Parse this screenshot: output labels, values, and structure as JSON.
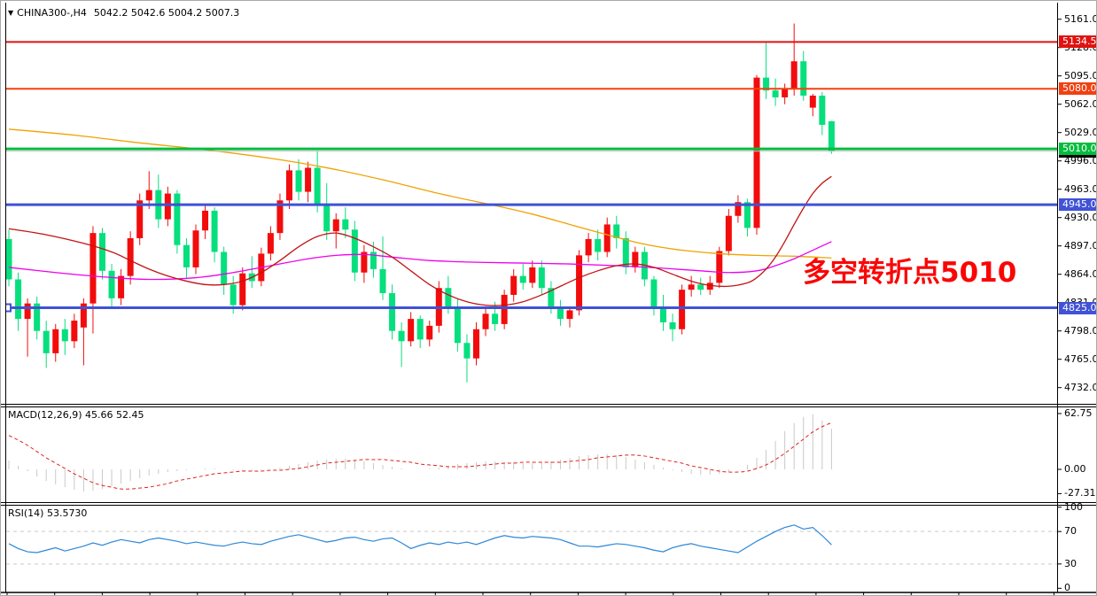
{
  "window": {
    "symbol": "CHINA300-,H4",
    "ohlc": "5042.2 5042.6 5004.2 5007.3"
  },
  "annotation": {
    "text": "多空转折点5010",
    "color": "#fa0606"
  },
  "panels": {
    "macd": {
      "label": "MACD(12,26,9) 45.66 52.45"
    },
    "rsi": {
      "label": "RSI(14) 53.5730"
    }
  },
  "chart_data": {
    "type": "candlestick",
    "title": "CHINA300-,H4",
    "last_bar": {
      "open": 5042.2,
      "high": 5042.6,
      "low": 5004.2,
      "close": 5007.3
    },
    "price_axis": {
      "labels": [
        "5161.0",
        "5128.0",
        "5095.0",
        "5062.0",
        "5029.0",
        "4996.0",
        "4963.0",
        "4930.0",
        "4897.0",
        "4864.0",
        "4831.0",
        "4798.0",
        "4765.0",
        "4732.0"
      ],
      "min": 4732.0,
      "max": 5161.0,
      "step": 33.0
    },
    "axis_badges": [
      {
        "label": "5134.5",
        "price": 5134.5,
        "bg": "#df1310"
      },
      {
        "label": "5080.0",
        "price": 5080.0,
        "bg": "#f04012"
      },
      {
        "label": "5007.3",
        "price": 5007.3,
        "bg": "#000000"
      },
      {
        "label": "5010.0",
        "price": 5010.0,
        "bg": "#00bd3d"
      },
      {
        "label": "4945.0",
        "price": 4945.0,
        "bg": "#4052d5"
      },
      {
        "label": "4825.0",
        "price": 4825.0,
        "bg": "#4052d5"
      }
    ],
    "hlines": [
      {
        "price": 5134.5,
        "color": "#e11414",
        "width": 2,
        "handle": false
      },
      {
        "price": 5080.0,
        "color": "#f3410f",
        "width": 2,
        "handle": false
      },
      {
        "price": 5010.0,
        "color": "#00bd3d",
        "width": 3,
        "handle": false
      },
      {
        "price": 4945.0,
        "color": "#4052d5",
        "width": 3,
        "handle": false
      },
      {
        "price": 4825.0,
        "color": "#4052d5",
        "width": 3,
        "handle": true
      }
    ],
    "last_price_line": {
      "price": 5007.3,
      "color": "#c4c4c4"
    },
    "colors": {
      "candle_up": "#f20c0c",
      "candle_down": "#06df7d",
      "ma_orange": "#f0a202",
      "ma_magenta": "#ee00ee",
      "ma_darkred": "#c21313",
      "macd_bar": "#c9c9c9",
      "macd_signal": "#e02020",
      "rsi_line": "#2b87d8",
      "rsi_level": "#c9c9c9"
    },
    "candles": [
      [
        4905,
        4916,
        4850,
        4858
      ],
      [
        4858,
        4866,
        4798,
        4812
      ],
      [
        4812,
        4836,
        4768,
        4830
      ],
      [
        4830,
        4838,
        4788,
        4798
      ],
      [
        4798,
        4810,
        4755,
        4772
      ],
      [
        4772,
        4806,
        4762,
        4800
      ],
      [
        4800,
        4812,
        4770,
        4786
      ],
      [
        4786,
        4818,
        4778,
        4810
      ],
      [
        4802,
        4836,
        4758,
        4830
      ],
      [
        4830,
        4920,
        4795,
        4912
      ],
      [
        4912,
        4918,
        4858,
        4868
      ],
      [
        4868,
        4876,
        4826,
        4836
      ],
      [
        4836,
        4870,
        4828,
        4862
      ],
      [
        4862,
        4914,
        4852,
        4906
      ],
      [
        4906,
        4958,
        4898,
        4950
      ],
      [
        4950,
        4984,
        4940,
        4962
      ],
      [
        4962,
        4980,
        4918,
        4928
      ],
      [
        4928,
        4966,
        4920,
        4958
      ],
      [
        4958,
        4962,
        4888,
        4898
      ],
      [
        4898,
        4906,
        4860,
        4872
      ],
      [
        4872,
        4922,
        4864,
        4915
      ],
      [
        4915,
        4945,
        4905,
        4938
      ],
      [
        4938,
        4942,
        4878,
        4890
      ],
      [
        4890,
        4896,
        4840,
        4852
      ],
      [
        4852,
        4862,
        4818,
        4828
      ],
      [
        4828,
        4872,
        4822,
        4865
      ],
      [
        4865,
        4885,
        4848,
        4856
      ],
      [
        4856,
        4895,
        4850,
        4888
      ],
      [
        4888,
        4920,
        4880,
        4912
      ],
      [
        4912,
        4958,
        4904,
        4950
      ],
      [
        4950,
        4992,
        4940,
        4985
      ],
      [
        4985,
        4998,
        4950,
        4960
      ],
      [
        4960,
        4995,
        4948,
        4988
      ],
      [
        4988,
        5008,
        4936,
        4946
      ],
      [
        4946,
        4970,
        4904,
        4914
      ],
      [
        4914,
        4935,
        4894,
        4928
      ],
      [
        4928,
        4942,
        4906,
        4916
      ],
      [
        4916,
        4926,
        4856,
        4866
      ],
      [
        4866,
        4898,
        4854,
        4890
      ],
      [
        4890,
        4902,
        4860,
        4870
      ],
      [
        4870,
        4908,
        4834,
        4842
      ],
      [
        4842,
        4852,
        4788,
        4798
      ],
      [
        4798,
        4808,
        4756,
        4786
      ],
      [
        4786,
        4820,
        4780,
        4812
      ],
      [
        4812,
        4816,
        4778,
        4788
      ],
      [
        4788,
        4810,
        4780,
        4804
      ],
      [
        4804,
        4856,
        4796,
        4848
      ],
      [
        4848,
        4862,
        4818,
        4826
      ],
      [
        4826,
        4836,
        4774,
        4784
      ],
      [
        4784,
        4794,
        4738,
        4766
      ],
      [
        4766,
        4808,
        4758,
        4800
      ],
      [
        4800,
        4824,
        4792,
        4818
      ],
      [
        4818,
        4832,
        4798,
        4806
      ],
      [
        4806,
        4846,
        4800,
        4840
      ],
      [
        4840,
        4870,
        4832,
        4862
      ],
      [
        4862,
        4876,
        4846,
        4854
      ],
      [
        4854,
        4880,
        4848,
        4872
      ],
      [
        4872,
        4880,
        4840,
        4848
      ],
      [
        4848,
        4856,
        4818,
        4826
      ],
      [
        4826,
        4834,
        4804,
        4812
      ],
      [
        4812,
        4826,
        4802,
        4822
      ],
      [
        4822,
        4892,
        4816,
        4886
      ],
      [
        4886,
        4912,
        4878,
        4905
      ],
      [
        4905,
        4916,
        4880,
        4890
      ],
      [
        4890,
        4930,
        4884,
        4922
      ],
      [
        4922,
        4932,
        4894,
        4906
      ],
      [
        4906,
        4914,
        4864,
        4872
      ],
      [
        4872,
        4896,
        4866,
        4890
      ],
      [
        4890,
        4896,
        4850,
        4858
      ],
      [
        4858,
        4862,
        4816,
        4826
      ],
      [
        4826,
        4840,
        4798,
        4808
      ],
      [
        4808,
        4818,
        4786,
        4800
      ],
      [
        4800,
        4852,
        4794,
        4846
      ],
      [
        4846,
        4862,
        4838,
        4852
      ],
      [
        4852,
        4860,
        4840,
        4846
      ],
      [
        4846,
        4862,
        4840,
        4854
      ],
      [
        4854,
        4896,
        4848,
        4891
      ],
      [
        4891,
        4940,
        4886,
        4932
      ],
      [
        4932,
        4956,
        4924,
        4948
      ],
      [
        4948,
        4952,
        4908,
        4918
      ],
      [
        4918,
        5096,
        4910,
        5093
      ],
      [
        5093,
        5134,
        5068,
        5078
      ],
      [
        5078,
        5092,
        5060,
        5070
      ],
      [
        5070,
        5086,
        5062,
        5080
      ],
      [
        5080,
        5156,
        5072,
        5112
      ],
      [
        5112,
        5124,
        5066,
        5072
      ],
      [
        5058,
        5074,
        5048,
        5072
      ],
      [
        5072,
        5076,
        5026,
        5038
      ],
      [
        5042.2,
        5042.6,
        5004.2,
        5007.3
      ]
    ],
    "ma": {
      "orange": [
        [
          0,
          5033
        ],
        [
          7,
          5026
        ],
        [
          14,
          5017
        ],
        [
          21,
          5009
        ],
        [
          28,
          4999
        ],
        [
          34,
          4988
        ],
        [
          40,
          4974
        ],
        [
          46,
          4958
        ],
        [
          52,
          4944
        ],
        [
          56,
          4934
        ],
        [
          60,
          4922
        ],
        [
          64,
          4910
        ],
        [
          68,
          4899
        ],
        [
          72,
          4892
        ],
        [
          76,
          4888
        ],
        [
          80,
          4886
        ],
        [
          84,
          4885
        ],
        [
          88,
          4883
        ]
      ],
      "magenta": [
        [
          0,
          4872
        ],
        [
          5,
          4866
        ],
        [
          10,
          4861
        ],
        [
          15,
          4858
        ],
        [
          20,
          4860
        ],
        [
          24,
          4866
        ],
        [
          28,
          4874
        ],
        [
          32,
          4882
        ],
        [
          35,
          4886
        ],
        [
          38,
          4887
        ],
        [
          41,
          4884
        ],
        [
          45,
          4880
        ],
        [
          50,
          4878
        ],
        [
          55,
          4877
        ],
        [
          60,
          4876
        ],
        [
          65,
          4874
        ],
        [
          70,
          4871
        ],
        [
          74,
          4868
        ],
        [
          77,
          4866
        ],
        [
          80,
          4868
        ],
        [
          82,
          4874
        ],
        [
          84,
          4882
        ],
        [
          86,
          4892
        ],
        [
          88,
          4902
        ]
      ],
      "darkred": [
        [
          0,
          4917
        ],
        [
          4,
          4910
        ],
        [
          8,
          4900
        ],
        [
          11,
          4890
        ],
        [
          13,
          4880
        ],
        [
          15,
          4870
        ],
        [
          17,
          4862
        ],
        [
          19,
          4856
        ],
        [
          21,
          4852
        ],
        [
          23,
          4852
        ],
        [
          25,
          4856
        ],
        [
          27,
          4866
        ],
        [
          29,
          4880
        ],
        [
          31,
          4896
        ],
        [
          33,
          4908
        ],
        [
          35,
          4912
        ],
        [
          37,
          4906
        ],
        [
          39,
          4896
        ],
        [
          41,
          4884
        ],
        [
          43,
          4868
        ],
        [
          45,
          4852
        ],
        [
          47,
          4840
        ],
        [
          49,
          4832
        ],
        [
          51,
          4828
        ],
        [
          53,
          4828
        ],
        [
          55,
          4832
        ],
        [
          57,
          4840
        ],
        [
          59,
          4850
        ],
        [
          61,
          4860
        ],
        [
          63,
          4868
        ],
        [
          65,
          4874
        ],
        [
          67,
          4876
        ],
        [
          69,
          4872
        ],
        [
          71,
          4864
        ],
        [
          73,
          4856
        ],
        [
          75,
          4851
        ],
        [
          77,
          4850
        ],
        [
          79,
          4854
        ],
        [
          80,
          4860
        ],
        [
          81,
          4870
        ],
        [
          82,
          4884
        ],
        [
          83,
          4902
        ],
        [
          84,
          4922
        ],
        [
          85,
          4941
        ],
        [
          86,
          4958
        ],
        [
          87,
          4970
        ],
        [
          88,
          4978
        ]
      ]
    },
    "indicators": {
      "macd": {
        "name": "MACD(12,26,9)",
        "main_last": 45.66,
        "signal_last": 52.45,
        "axis_labels": [
          "62.75",
          "0.00",
          "-27.31"
        ],
        "axis_values": [
          62.75,
          0.0,
          -27.31
        ],
        "histogram": [
          10,
          4,
          -2,
          -8,
          -13,
          -17,
          -20,
          -23,
          -25,
          -24,
          -22,
          -19,
          -16,
          -13,
          -10,
          -7,
          -5,
          -3,
          -2,
          -1,
          0,
          1,
          1,
          0,
          -1,
          -2,
          -2,
          -1,
          0,
          2,
          4,
          6,
          8,
          10,
          11,
          12,
          12,
          11,
          9,
          7,
          5,
          3,
          1,
          0,
          0,
          1,
          2,
          4,
          6,
          7,
          8,
          9,
          9,
          8,
          8,
          7,
          7,
          8,
          9,
          11,
          13,
          15,
          16,
          17,
          17,
          16,
          14,
          11,
          8,
          5,
          2,
          -1,
          -3,
          -5,
          -6,
          -6,
          -5,
          -3,
          0,
          5,
          13,
          22,
          32,
          43,
          52,
          59,
          62,
          55,
          45.66
        ],
        "signal": [
          38,
          33,
          27,
          20,
          13,
          7,
          1,
          -5,
          -10,
          -15,
          -18,
          -20,
          -22,
          -22,
          -21,
          -20,
          -18,
          -16,
          -13,
          -11,
          -9,
          -7,
          -5,
          -4,
          -3,
          -2,
          -2,
          -2,
          -1,
          -1,
          0,
          1,
          3,
          5,
          7,
          8,
          9,
          10,
          11,
          11,
          11,
          10,
          9,
          8,
          6,
          5,
          4,
          3,
          3,
          3,
          4,
          5,
          6,
          7,
          7,
          8,
          8,
          8,
          8,
          8,
          9,
          10,
          11,
          13,
          14,
          15,
          16,
          16,
          15,
          13,
          11,
          9,
          7,
          4,
          2,
          0,
          -2,
          -3,
          -3,
          -2,
          1,
          5,
          11,
          18,
          26,
          34,
          42,
          48,
          52.45
        ]
      },
      "rsi": {
        "name": "RSI(14)",
        "last": 53.573,
        "axis_labels": [
          "100",
          "70",
          "30",
          "0"
        ],
        "axis_values": [
          100,
          70,
          30,
          0
        ],
        "levels": [
          70,
          30
        ],
        "values": [
          55,
          49,
          45,
          44,
          47,
          50,
          46,
          49,
          52,
          56,
          53,
          57,
          60,
          58,
          56,
          60,
          62,
          60,
          58,
          55,
          57,
          55,
          53,
          52,
          55,
          57,
          55,
          54,
          58,
          61,
          64,
          66,
          63,
          60,
          57,
          59,
          62,
          63,
          60,
          58,
          61,
          62,
          56,
          49,
          53,
          56,
          54,
          57,
          55,
          57,
          54,
          58,
          62,
          65,
          63,
          62,
          64,
          63,
          62,
          60,
          56,
          52,
          52,
          51,
          53,
          55,
          54,
          52,
          50,
          47,
          45,
          50,
          53,
          55,
          52,
          50,
          48,
          46,
          44,
          51,
          58,
          64,
          70,
          75,
          78,
          73,
          75,
          65,
          53.57
        ]
      }
    },
    "time_axis": {
      "start": 7,
      "step": 53.7,
      "count": 23
    }
  }
}
